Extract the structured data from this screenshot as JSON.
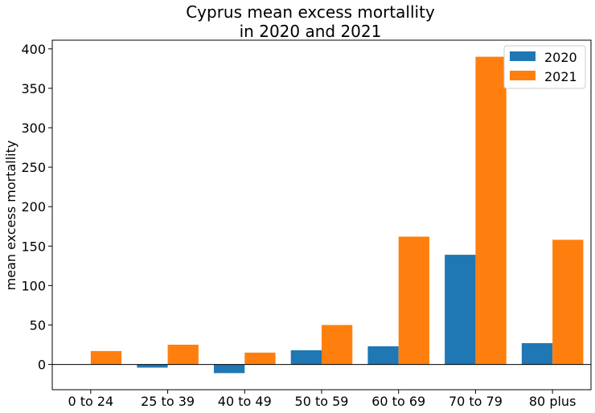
{
  "chart_data": {
    "type": "bar",
    "title_line1": "Cyprus mean excess mortallity",
    "title_line2": "in 2020 and 2021",
    "xlabel": "",
    "ylabel": "mean excess mortallity",
    "categories": [
      "0 to 24",
      "25 to 39",
      "40 to 49",
      "50 to 59",
      "60 to 69",
      "70 to 79",
      "80 plus"
    ],
    "series": [
      {
        "name": "2020",
        "color": "#1f77b4",
        "values": [
          0,
          -4,
          -11,
          18,
          23,
          139,
          27
        ]
      },
      {
        "name": "2021",
        "color": "#ff7f0e",
        "values": [
          17,
          25,
          15,
          50,
          162,
          390,
          158
        ]
      }
    ],
    "ylim": [
      -32,
      411
    ],
    "yticks": [
      0,
      50,
      100,
      150,
      200,
      250,
      300,
      350,
      400
    ],
    "zero_line": true,
    "grid": false,
    "legend_position": "top-right"
  }
}
